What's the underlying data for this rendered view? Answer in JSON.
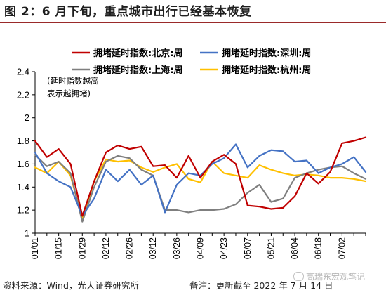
{
  "figure": {
    "title": "图 2：6 月下旬，重点城市出行已经基本恢复",
    "source": "资料来源：Wind，光大证券研究所",
    "note": "备注：更新截至 2022 年 7 月 14 日",
    "watermark": "高瑞东宏观笔记"
  },
  "colors": {
    "title_rule": "#9a2a2a",
    "beijing": "#c00000",
    "shenzhen": "#4472c4",
    "shanghai": "#7f7f7f",
    "hangzhou": "#ffc000"
  },
  "chart_data": {
    "type": "line",
    "title": "",
    "xlabel": "",
    "ylabel": "",
    "annotation": "(延时指数越高\n表示越拥堵)",
    "ylim": [
      1,
      2.4
    ],
    "yticks": [
      "1",
      "1.2",
      "1.4",
      "1.6",
      "1.8",
      "2",
      "2.2",
      "2.4"
    ],
    "grid": false,
    "legend_position": "top",
    "xticks": [
      "01/01",
      "01/15",
      "01/29",
      "02/12",
      "02/26",
      "03/12",
      "03/26",
      "04/09",
      "04/23",
      "05/07",
      "05/21",
      "06/04",
      "06/18",
      "07/02"
    ],
    "x": [
      "01/01",
      "01/08",
      "01/15",
      "01/22",
      "01/29",
      "02/05",
      "02/12",
      "02/19",
      "02/26",
      "03/05",
      "03/12",
      "03/19",
      "03/26",
      "04/02",
      "04/09",
      "04/16",
      "04/23",
      "04/30",
      "05/07",
      "05/14",
      "05/21",
      "05/28",
      "06/04",
      "06/11",
      "06/18",
      "06/25",
      "07/02",
      "07/09",
      "07/14"
    ],
    "series": [
      {
        "name": "拥堵延时指数:北京:周",
        "color": "#c00000",
        "values": [
          1.8,
          1.66,
          1.73,
          1.6,
          1.15,
          1.45,
          1.7,
          1.76,
          1.73,
          1.75,
          1.58,
          1.59,
          1.48,
          1.67,
          1.48,
          1.62,
          1.68,
          1.6,
          1.24,
          1.23,
          1.21,
          1.22,
          1.32,
          1.52,
          1.43,
          1.53,
          1.78,
          1.8,
          1.83
        ]
      },
      {
        "name": "拥堵延时指数:深圳:周",
        "color": "#4472c4",
        "values": [
          1.7,
          1.52,
          1.45,
          1.4,
          1.15,
          1.3,
          1.55,
          1.45,
          1.55,
          1.42,
          1.5,
          1.18,
          1.42,
          1.52,
          1.5,
          1.6,
          1.65,
          1.77,
          1.57,
          1.67,
          1.72,
          1.71,
          1.62,
          1.63,
          1.52,
          1.57,
          1.6,
          1.66,
          1.53
        ]
      },
      {
        "name": "拥堵延时指数:上海:周",
        "color": "#7f7f7f",
        "values": [
          1.68,
          1.58,
          1.62,
          1.52,
          1.1,
          1.4,
          1.62,
          1.67,
          1.65,
          1.55,
          1.5,
          1.2,
          1.2,
          1.18,
          1.2,
          1.2,
          1.21,
          1.25,
          1.35,
          1.42,
          1.27,
          1.3,
          1.48,
          1.52,
          1.55,
          1.57,
          1.58,
          1.52,
          1.47
        ]
      },
      {
        "name": "拥堵延时指数:杭州:周",
        "color": "#ffc000",
        "values": [
          1.57,
          1.52,
          1.62,
          1.5,
          1.12,
          1.45,
          1.64,
          1.62,
          1.63,
          1.57,
          1.53,
          1.57,
          1.6,
          1.47,
          1.44,
          1.62,
          1.52,
          1.5,
          1.48,
          1.59,
          1.55,
          1.52,
          1.5,
          1.51,
          1.5,
          1.48,
          1.48,
          1.47,
          1.45
        ]
      }
    ]
  }
}
